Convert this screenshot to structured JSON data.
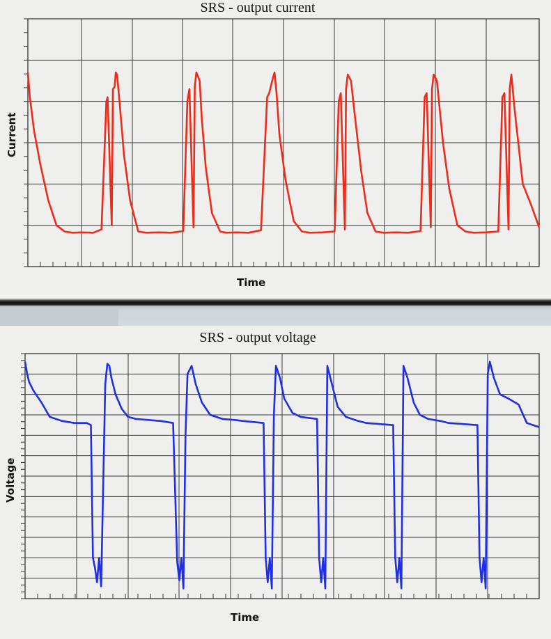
{
  "colors": {
    "current_trace": "#ee2a1a",
    "voltage_trace": "#1f2fe8",
    "grid": "#3a3a3a",
    "plot_background": "#efefed"
  },
  "chart_data": [
    {
      "type": "line",
      "title": "SRS - output current",
      "xlabel": "Time",
      "ylabel": "Current",
      "grid": true,
      "x_range": [
        0,
        12.5
      ],
      "y_range": [
        0,
        6
      ],
      "series": [
        {
          "values_x": [
            0,
            0.05,
            0.15,
            0.3,
            0.5,
            0.7,
            0.9,
            1.1,
            1.3,
            1.6,
            1.8,
            1.92,
            1.95,
            2.05,
            2.08,
            2.12,
            2.15,
            2.18,
            2.25,
            2.35,
            2.5,
            2.7,
            2.9,
            3.2,
            3.5,
            3.8,
            3.9,
            3.95,
            4.05,
            4.08,
            4.12,
            4.2,
            4.25,
            4.35,
            4.5,
            4.7,
            4.85,
            5.1,
            5.4,
            5.7,
            5.85,
            5.9,
            6.0,
            6.03,
            6.08,
            6.15,
            6.3,
            6.5,
            6.7,
            6.9,
            7.2,
            7.5,
            7.6,
            7.65,
            7.75,
            7.78,
            7.82,
            7.9,
            8.0,
            8.15,
            8.3,
            8.5,
            8.7,
            9.0,
            9.3,
            9.6,
            9.7,
            9.75,
            9.85,
            9.88,
            9.92,
            10.0,
            10.15,
            10.3,
            10.5,
            10.7,
            10.9,
            11.2,
            11.5,
            11.6,
            11.65,
            11.75,
            11.78,
            11.82,
            11.9,
            12.1,
            12.3,
            12.5
          ],
          "values_y": [
            4.7,
            4.1,
            3.3,
            2.5,
            1.6,
            1.0,
            0.85,
            0.82,
            0.83,
            0.82,
            0.9,
            4.0,
            4.1,
            1.0,
            4.3,
            4.35,
            4.7,
            4.65,
            3.9,
            2.7,
            1.6,
            0.85,
            0.82,
            0.83,
            0.82,
            0.86,
            4.0,
            4.3,
            0.95,
            4.35,
            4.7,
            4.5,
            3.6,
            2.4,
            1.3,
            0.85,
            0.82,
            0.83,
            0.82,
            0.88,
            4.1,
            4.2,
            4.6,
            4.7,
            4.2,
            3.2,
            2.1,
            1.1,
            0.85,
            0.82,
            0.83,
            0.85,
            4.0,
            4.2,
            0.9,
            4.3,
            4.65,
            4.5,
            3.6,
            2.3,
            1.3,
            0.85,
            0.82,
            0.83,
            0.82,
            0.86,
            4.1,
            4.2,
            0.95,
            4.3,
            4.65,
            4.5,
            3.0,
            1.9,
            1.0,
            0.85,
            0.82,
            0.83,
            0.85,
            4.1,
            4.2,
            0.9,
            4.3,
            4.65,
            3.8,
            2.0,
            1.5,
            0.95
          ]
        }
      ]
    },
    {
      "type": "line",
      "title": "SRS - output voltage",
      "xlabel": "Time",
      "ylabel": "Voltage",
      "grid": true,
      "x_range": [
        0,
        12.5
      ],
      "y_range": [
        0,
        12
      ],
      "series": [
        {
          "values_x": [
            0,
            0.05,
            0.1,
            0.2,
            0.4,
            0.6,
            0.9,
            1.2,
            1.5,
            1.6,
            1.65,
            1.7,
            1.75,
            1.8,
            1.85,
            1.95,
            2.0,
            2.05,
            2.1,
            2.2,
            2.35,
            2.5,
            2.7,
            3.0,
            3.3,
            3.6,
            3.7,
            3.75,
            3.8,
            3.85,
            3.9,
            3.95,
            4.05,
            4.15,
            4.3,
            4.5,
            4.8,
            5.1,
            5.3,
            5.8,
            5.85,
            5.9,
            5.95,
            6.0,
            6.05,
            6.1,
            6.2,
            6.3,
            6.5,
            6.7,
            7.1,
            7.15,
            7.2,
            7.25,
            7.3,
            7.35,
            7.45,
            7.6,
            7.8,
            8.1,
            8.3,
            8.95,
            9.0,
            9.05,
            9.1,
            9.15,
            9.2,
            9.3,
            9.45,
            9.6,
            9.8,
            10.1,
            10.3,
            11.0,
            11.05,
            11.1,
            11.15,
            11.2,
            11.25,
            11.3,
            11.4,
            11.55,
            11.75,
            12.0,
            12.2,
            12.5
          ],
          "values_y": [
            11.6,
            11.0,
            10.6,
            10.2,
            9.6,
            8.9,
            8.7,
            8.6,
            8.6,
            8.5,
            2.0,
            1.5,
            0.8,
            2.0,
            0.6,
            10.5,
            11.5,
            11.4,
            10.8,
            10.0,
            9.3,
            8.9,
            8.8,
            8.75,
            8.7,
            8.6,
            1.8,
            0.9,
            2.0,
            0.5,
            8.0,
            11.0,
            11.4,
            10.5,
            9.6,
            9.0,
            8.8,
            8.75,
            8.7,
            8.6,
            2.0,
            0.8,
            2.0,
            0.5,
            9.0,
            11.4,
            10.8,
            9.8,
            9.1,
            8.9,
            8.8,
            2.0,
            0.8,
            2.0,
            0.5,
            11.4,
            10.6,
            9.4,
            8.9,
            8.7,
            8.6,
            8.5,
            2.0,
            0.8,
            2.0,
            0.5,
            11.4,
            10.8,
            9.6,
            9.0,
            8.8,
            8.7,
            8.6,
            8.5,
            2.0,
            0.8,
            2.0,
            0.5,
            11.0,
            11.6,
            10.8,
            10.0,
            9.8,
            9.5,
            8.6,
            8.4
          ]
        }
      ]
    }
  ]
}
